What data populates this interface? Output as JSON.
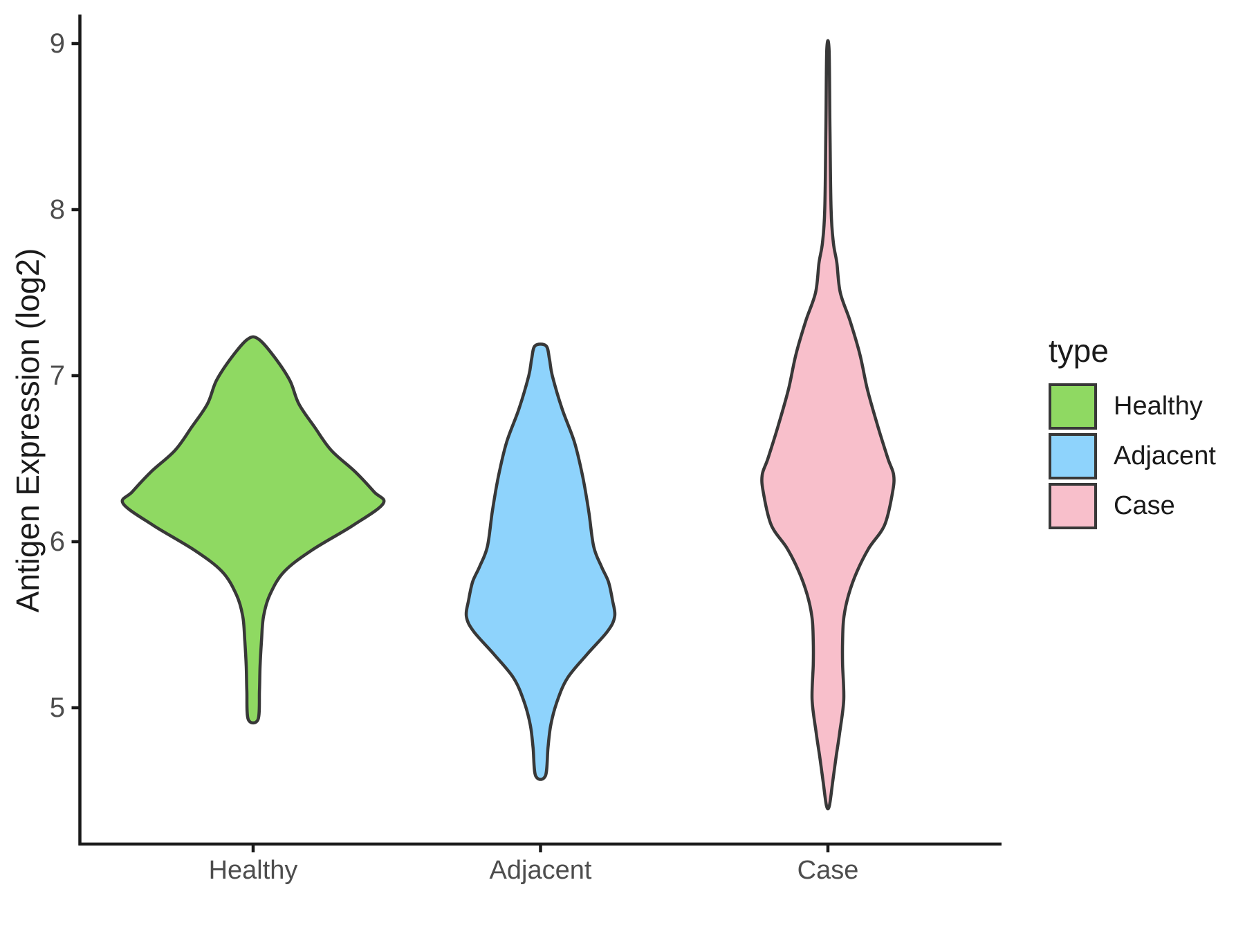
{
  "figure": {
    "background": "#ffffff",
    "axis_color": "#1a1a1a",
    "axis_text_color": "#4d4d4d",
    "outline_color": "#383838"
  },
  "chart_data": {
    "type": "violin",
    "title": "",
    "xlabel": "",
    "ylabel": "Antigen Expression (log2)",
    "categories": [
      "Healthy",
      "Adjacent",
      "Case"
    ],
    "y_ticks": [
      5,
      6,
      7,
      8,
      9
    ],
    "ylim": [
      4.18,
      9.17
    ],
    "grid": false,
    "legend": {
      "title": "type",
      "position": "right",
      "entries": [
        {
          "label": "Healthy",
          "color": "#8fd962"
        },
        {
          "label": "Adjacent",
          "color": "#8ed3fc"
        },
        {
          "label": "Case",
          "color": "#f8bfcb"
        }
      ]
    },
    "series": [
      {
        "name": "Healthy",
        "color": "#8fd962",
        "violin": {
          "min": 4.93,
          "max": 7.22,
          "peak_value": 6.23,
          "max_halfwidth": 0.4525,
          "profile": [
            [
              4.93,
              0.017
            ],
            [
              5.1,
              0.022
            ],
            [
              5.25,
              0.024
            ],
            [
              5.4,
              0.029
            ],
            [
              5.55,
              0.036
            ],
            [
              5.68,
              0.058
            ],
            [
              5.82,
              0.108
            ],
            [
              5.95,
              0.205
            ],
            [
              6.1,
              0.349
            ],
            [
              6.23,
              0.4525
            ],
            [
              6.3,
              0.421
            ],
            [
              6.42,
              0.356
            ],
            [
              6.55,
              0.272
            ],
            [
              6.69,
              0.214
            ],
            [
              6.83,
              0.159
            ],
            [
              6.97,
              0.128
            ],
            [
              7.11,
              0.075
            ],
            [
              7.22,
              0.019
            ]
          ]
        }
      },
      {
        "name": "Adjacent",
        "color": "#8ed3fc",
        "violin": {
          "min": 4.59,
          "max": 7.18,
          "peak_value": 5.55,
          "max_halfwidth": 0.258,
          "profile": [
            [
              4.59,
              0.017
            ],
            [
              4.76,
              0.026
            ],
            [
              4.9,
              0.036
            ],
            [
              5.04,
              0.058
            ],
            [
              5.18,
              0.094
            ],
            [
              5.32,
              0.161
            ],
            [
              5.46,
              0.233
            ],
            [
              5.55,
              0.258
            ],
            [
              5.65,
              0.25
            ],
            [
              5.76,
              0.236
            ],
            [
              5.85,
              0.212
            ],
            [
              5.97,
              0.185
            ],
            [
              6.18,
              0.168
            ],
            [
              6.39,
              0.147
            ],
            [
              6.6,
              0.118
            ],
            [
              6.8,
              0.075
            ],
            [
              7.0,
              0.041
            ],
            [
              7.1,
              0.031
            ],
            [
              7.18,
              0.019
            ]
          ]
        }
      },
      {
        "name": "Case",
        "color": "#f8bfcb",
        "violin": {
          "min": 4.41,
          "max": 8.96,
          "peak_value": 6.4,
          "max_halfwidth": 0.229,
          "profile": [
            [
              4.41,
              0.005
            ],
            [
              4.56,
              0.017
            ],
            [
              4.71,
              0.029
            ],
            [
              4.85,
              0.041
            ],
            [
              5.05,
              0.055
            ],
            [
              5.26,
              0.051
            ],
            [
              5.4,
              0.051
            ],
            [
              5.54,
              0.055
            ],
            [
              5.68,
              0.072
            ],
            [
              5.82,
              0.101
            ],
            [
              5.96,
              0.142
            ],
            [
              6.1,
              0.197
            ],
            [
              6.29,
              0.224
            ],
            [
              6.4,
              0.229
            ],
            [
              6.5,
              0.209
            ],
            [
              6.71,
              0.171
            ],
            [
              6.92,
              0.137
            ],
            [
              7.13,
              0.111
            ],
            [
              7.33,
              0.077
            ],
            [
              7.5,
              0.043
            ],
            [
              7.68,
              0.031
            ],
            [
              7.8,
              0.019
            ],
            [
              8.0,
              0.011
            ],
            [
              8.5,
              0.007
            ],
            [
              8.96,
              0.004
            ]
          ]
        }
      }
    ]
  }
}
